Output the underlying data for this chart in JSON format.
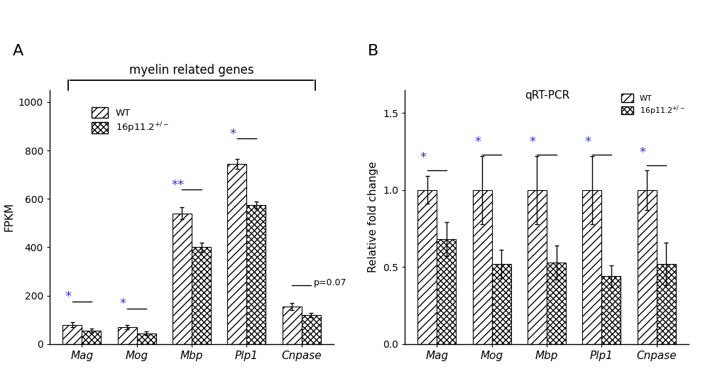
{
  "panel_A": {
    "categories": [
      "Mag",
      "Mog",
      "Mbp",
      "Plp1",
      "Cnpase"
    ],
    "wt_values": [
      80,
      70,
      540,
      745,
      155
    ],
    "mut_values": [
      55,
      45,
      400,
      575,
      120
    ],
    "wt_errors": [
      10,
      8,
      25,
      20,
      15
    ],
    "mut_errors": [
      8,
      6,
      20,
      15,
      10
    ],
    "ylabel": "FPKM",
    "ylim": [
      0,
      1050
    ],
    "yticks": [
      0,
      200,
      400,
      600,
      800,
      1000
    ],
    "significance": [
      "*",
      "*",
      "**",
      "*",
      "p=0.07"
    ],
    "sig_y": [
      170,
      140,
      630,
      840,
      235
    ],
    "bracket_y": [
      175,
      145,
      640,
      850,
      242
    ],
    "title_bracket": "myelin related genes",
    "panel_label": "A"
  },
  "panel_B": {
    "categories": [
      "Mag",
      "Mog",
      "Mbp",
      "Plp1",
      "Cnpase"
    ],
    "wt_values": [
      1.0,
      1.0,
      1.0,
      1.0,
      1.0
    ],
    "mut_values": [
      0.68,
      0.52,
      0.53,
      0.44,
      0.52
    ],
    "wt_errors": [
      0.09,
      0.22,
      0.22,
      0.22,
      0.13
    ],
    "mut_errors": [
      0.11,
      0.09,
      0.11,
      0.07,
      0.14
    ],
    "ylabel": "Relative fold change",
    "ylim": [
      0,
      1.65
    ],
    "yticks": [
      0.0,
      0.5,
      1.0,
      1.5
    ],
    "significance": [
      "*",
      "*",
      "*",
      "*",
      "*"
    ],
    "sig_y": [
      1.17,
      1.27,
      1.27,
      1.27,
      1.2
    ],
    "bracket_y": [
      1.13,
      1.23,
      1.23,
      1.23,
      1.16
    ],
    "panel_label": "B",
    "title": "qRT-PCR"
  },
  "wt_hatch": "///",
  "mut_hatch": "xxxx",
  "bar_width": 0.35,
  "wt_color": "white",
  "mut_color": "white",
  "edge_color": "black",
  "background_color": "white",
  "sig_color": "#3333cc"
}
